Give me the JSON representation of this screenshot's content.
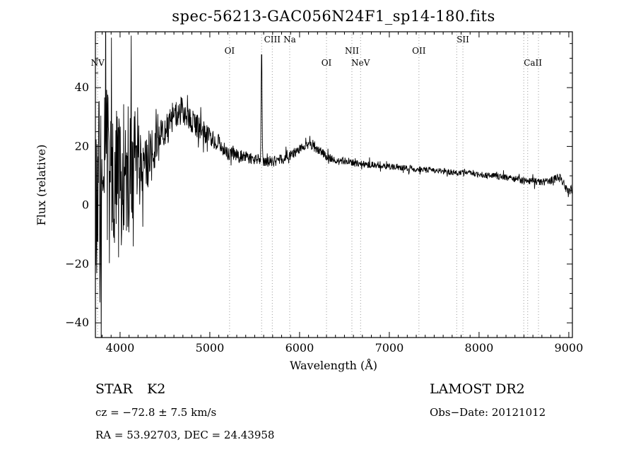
{
  "title": "spec-56213-GAC056N24F1_sp14-180.fits",
  "footer": {
    "class_label": "STAR",
    "subclass": "K2",
    "survey": "LAMOST DR2",
    "cz_line": "cz = −72.8 ± 7.5 km/s",
    "obs_date_line": "Obs−Date: 20121012",
    "ra_dec_line": "RA =  53.92703, DEC =  24.43958"
  },
  "chart_data": {
    "type": "line",
    "title": "spec-56213-GAC056N24F1_sp14-180.fits",
    "xlabel": "Wavelength (Å)",
    "ylabel": "Flux (relative)",
    "xlim": [
      3725,
      9040
    ],
    "ylim": [
      -45,
      59
    ],
    "xticks": [
      4000,
      5000,
      6000,
      7000,
      8000,
      9000
    ],
    "yticks": [
      -40,
      -20,
      0,
      20,
      40
    ],
    "x_minor_step": 100,
    "y_minor_step": 5,
    "grid": false,
    "legend": "none",
    "line_color": "#000000",
    "dotted_line_color": "#999999",
    "annotations": [
      {
        "label": "NV",
        "wavelength": 3750,
        "row": 2,
        "line": true
      },
      {
        "label": "OI",
        "wavelength": 5220,
        "row": 1,
        "line": true
      },
      {
        "label": "CIII",
        "wavelength": 5696,
        "row": 0,
        "line": true
      },
      {
        "label": "Na",
        "wavelength": 5890,
        "row": 0,
        "line": true
      },
      {
        "label": "OI",
        "wavelength": 6300,
        "row": 2,
        "line": true
      },
      {
        "label": "NII",
        "wavelength": 6583,
        "row": 1,
        "line": true
      },
      {
        "label": "NeV",
        "wavelength": 6680,
        "row": 2,
        "line": true
      },
      {
        "label": "OII",
        "wavelength": 7330,
        "row": 1,
        "line": true
      },
      {
        "label": "SII",
        "wavelength": 7820,
        "row": 0,
        "line": true
      },
      {
        "label": "CaII",
        "wavelength": 8600,
        "row": 2,
        "line": false
      }
    ],
    "extra_dotted_lines": [
      5577,
      7751,
      8498,
      8542,
      8662
    ],
    "spectrum": {
      "seed": 9,
      "samples": 1400,
      "continuum_anchors": [
        [
          3725,
          6
        ],
        [
          3800,
          3
        ],
        [
          3850,
          6
        ],
        [
          3900,
          9
        ],
        [
          3950,
          7
        ],
        [
          4000,
          10
        ],
        [
          4050,
          12
        ],
        [
          4100,
          11
        ],
        [
          4150,
          13
        ],
        [
          4200,
          13
        ],
        [
          4300,
          15
        ],
        [
          4400,
          19
        ],
        [
          4500,
          25
        ],
        [
          4600,
          30
        ],
        [
          4680,
          32
        ],
        [
          4750,
          30
        ],
        [
          4800,
          28
        ],
        [
          4900,
          26
        ],
        [
          5000,
          23
        ],
        [
          5100,
          21
        ],
        [
          5200,
          18
        ],
        [
          5300,
          17
        ],
        [
          5400,
          16.5
        ],
        [
          5500,
          15.5
        ],
        [
          5600,
          15
        ],
        [
          5700,
          15
        ],
        [
          5800,
          15.5
        ],
        [
          5900,
          17
        ],
        [
          6000,
          19
        ],
        [
          6080,
          20.5
        ],
        [
          6150,
          20
        ],
        [
          6250,
          18
        ],
        [
          6300,
          16.5
        ],
        [
          6400,
          15.5
        ],
        [
          6500,
          15
        ],
        [
          6600,
          14.5
        ],
        [
          6700,
          14
        ],
        [
          6800,
          13.8
        ],
        [
          6900,
          13.4
        ],
        [
          7000,
          13.2
        ],
        [
          7100,
          13
        ],
        [
          7200,
          12.7
        ],
        [
          7300,
          12.3
        ],
        [
          7400,
          12
        ],
        [
          7500,
          11.8
        ],
        [
          7600,
          11.5
        ],
        [
          7700,
          11.2
        ],
        [
          7800,
          11
        ],
        [
          7900,
          10.8
        ],
        [
          8000,
          10.5
        ],
        [
          8100,
          10.2
        ],
        [
          8200,
          9.8
        ],
        [
          8300,
          9.4
        ],
        [
          8400,
          8.9
        ],
        [
          8500,
          8.4
        ],
        [
          8600,
          8.2
        ],
        [
          8700,
          8
        ],
        [
          8800,
          8.3
        ],
        [
          8870,
          9.5
        ],
        [
          8920,
          9
        ],
        [
          8970,
          6
        ],
        [
          9000,
          4
        ],
        [
          9040,
          6
        ]
      ],
      "noise_anchors": [
        [
          3725,
          36
        ],
        [
          3760,
          42
        ],
        [
          3820,
          38
        ],
        [
          3880,
          32
        ],
        [
          3950,
          28
        ],
        [
          4020,
          26
        ],
        [
          4080,
          24
        ],
        [
          4150,
          18
        ],
        [
          4220,
          14
        ],
        [
          4300,
          10
        ],
        [
          4400,
          8
        ],
        [
          4500,
          6.5
        ],
        [
          4650,
          5
        ],
        [
          4800,
          4.2
        ],
        [
          5000,
          3.2
        ],
        [
          5200,
          2.6
        ],
        [
          5400,
          2.2
        ],
        [
          5600,
          2
        ],
        [
          5800,
          1.8
        ],
        [
          6000,
          1.6
        ],
        [
          6300,
          1.4
        ],
        [
          6600,
          1.2
        ],
        [
          7000,
          1.1
        ],
        [
          7500,
          1
        ],
        [
          8000,
          1
        ],
        [
          8400,
          1.1
        ],
        [
          8800,
          1.3
        ],
        [
          9040,
          1.8
        ]
      ],
      "spikes": [
        {
          "wavelength": 5577,
          "peak": 55,
          "width": 5
        }
      ]
    }
  }
}
